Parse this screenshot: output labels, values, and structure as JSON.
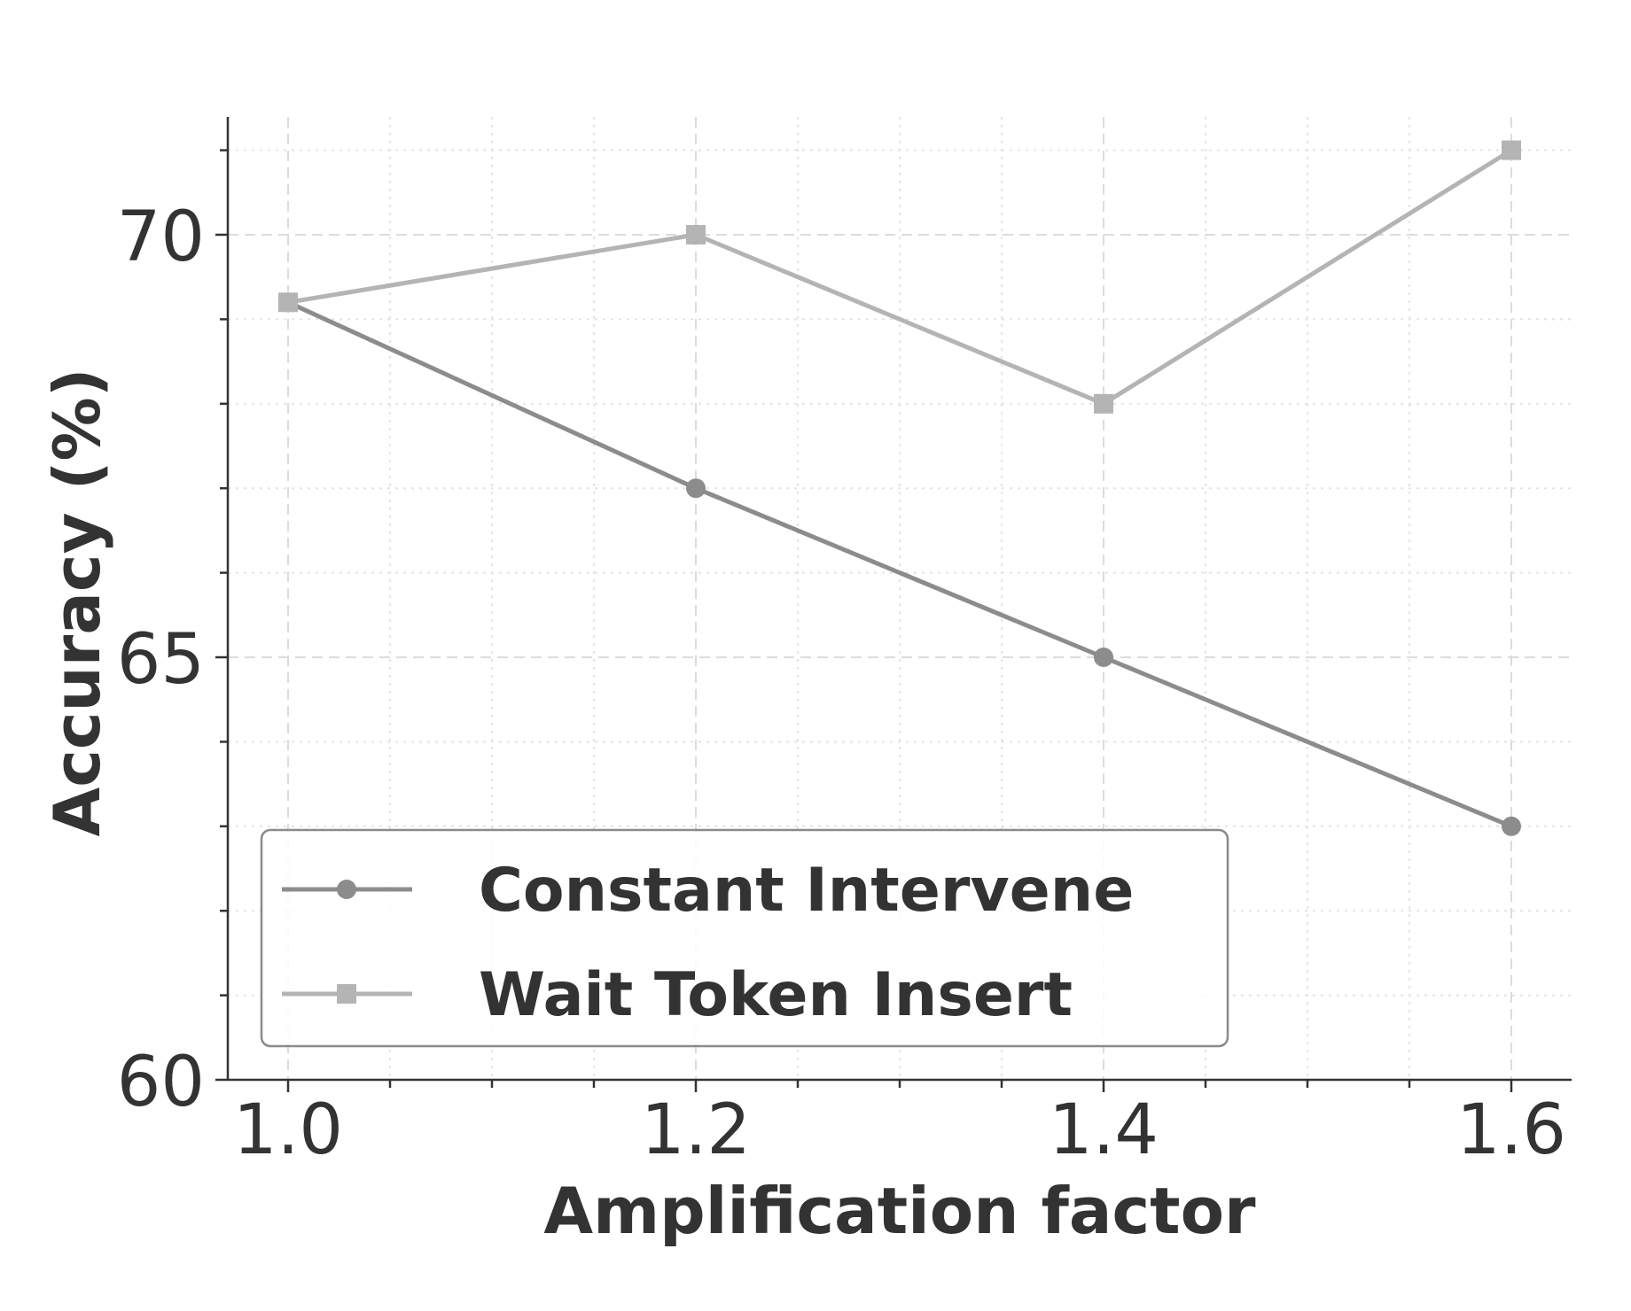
{
  "chart_data": {
    "type": "line",
    "title": "",
    "xlabel": "Amplification factor",
    "ylabel": "Accuracy (%)",
    "x": [
      1.0,
      1.2,
      1.4,
      1.6
    ],
    "xlim": [
      0.97,
      1.63
    ],
    "ylim": [
      60,
      71.4
    ],
    "xticks": [
      1.0,
      1.2,
      1.4,
      1.6
    ],
    "xtick_labels": [
      "1.0",
      "1.2",
      "1.4",
      "1.6"
    ],
    "x_minor_step": 0.05,
    "yticks": [
      60,
      65,
      70
    ],
    "ytick_labels": [
      "60",
      "65",
      "70"
    ],
    "y_minor_step": 1,
    "grid": true,
    "legend_position": "lower left",
    "series": [
      {
        "name": "Constant Intervene",
        "values": [
          69.2,
          67.0,
          65.0,
          63.0
        ],
        "marker": "circle",
        "color": "#8c8c8c"
      },
      {
        "name": "Wait Token Insert",
        "values": [
          69.2,
          70.0,
          68.0,
          71.0
        ],
        "marker": "square",
        "color": "#b4b4b4"
      }
    ]
  },
  "colors": {
    "text": "#333333",
    "grid": "#dcdcdc",
    "legend_border": "#8a8a8a"
  }
}
